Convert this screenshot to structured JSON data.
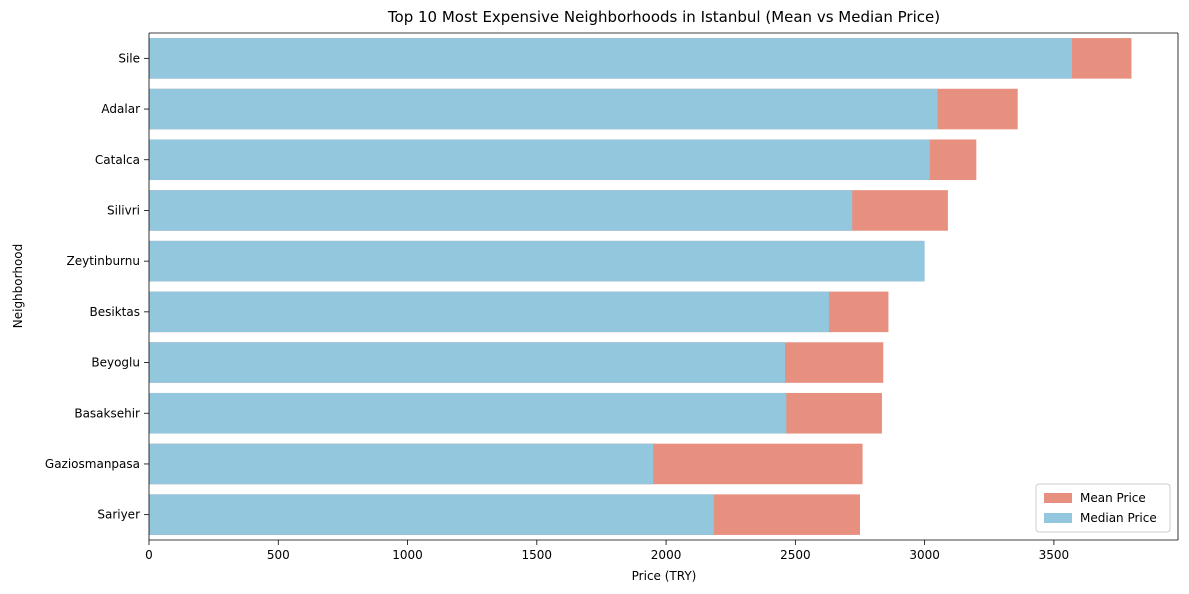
{
  "chart_data": {
    "type": "bar",
    "orientation": "horizontal",
    "title": "Top 10 Most Expensive Neighborhoods in Istanbul (Mean vs Median Price)",
    "xlabel": "Price (TRY)",
    "ylabel": "Neighborhood",
    "xlim": [
      0,
      3980
    ],
    "xticks": [
      0,
      500,
      1000,
      1500,
      2000,
      2500,
      3000,
      3500
    ],
    "categories": [
      "Sile",
      "Adalar",
      "Catalca",
      "Silivri",
      "Zeytinburnu",
      "Besiktas",
      "Beyoglu",
      "Basaksehir",
      "Gaziosmanpasa",
      "Sariyer"
    ],
    "series": [
      {
        "name": "Mean Price",
        "color": "#e8907f",
        "values": [
          3800,
          3360,
          3200,
          3090,
          2990,
          2860,
          2840,
          2835,
          2760,
          2750
        ]
      },
      {
        "name": "Median Price",
        "color": "#92c7de",
        "values": [
          3570,
          3050,
          3020,
          2720,
          3000,
          2630,
          2460,
          2465,
          1950,
          2185
        ]
      }
    ],
    "grid": false,
    "legend": {
      "position": "bottom-right",
      "entries": [
        "Mean Price",
        "Median Price"
      ]
    }
  }
}
